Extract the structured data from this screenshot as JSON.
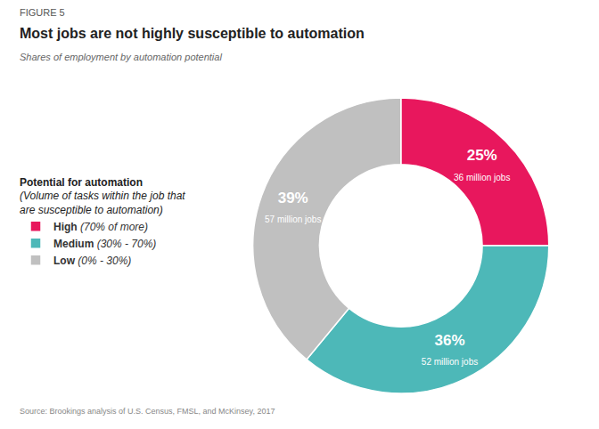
{
  "chart_data": {
    "type": "pie",
    "figure_label": "FIGURE 5",
    "title": "Most jobs are not highly susceptible to automation",
    "subtitle": "Shares of employment by automation potential",
    "source": "Source: Brookings analysis of U.S. Census, FMSL, and McKinsey, 2017",
    "categories": [
      "High (70% of more)",
      "Medium (30% - 70%)",
      "Low (0% - 30%)"
    ],
    "values": [
      25,
      36,
      39
    ],
    "value_labels": [
      "25%",
      "36%",
      "39%"
    ],
    "annotations": [
      "36 million jobs",
      "52 million jobs",
      "57 million jobs"
    ],
    "colors": [
      "#e8175d",
      "#4db8b8",
      "#c0c0c0"
    ],
    "data_labels": true,
    "legend": "left",
    "legend_title": "Potential for automation",
    "legend_subtitle": "(Volume of tasks within the job that\nare susceptible to automation)"
  }
}
